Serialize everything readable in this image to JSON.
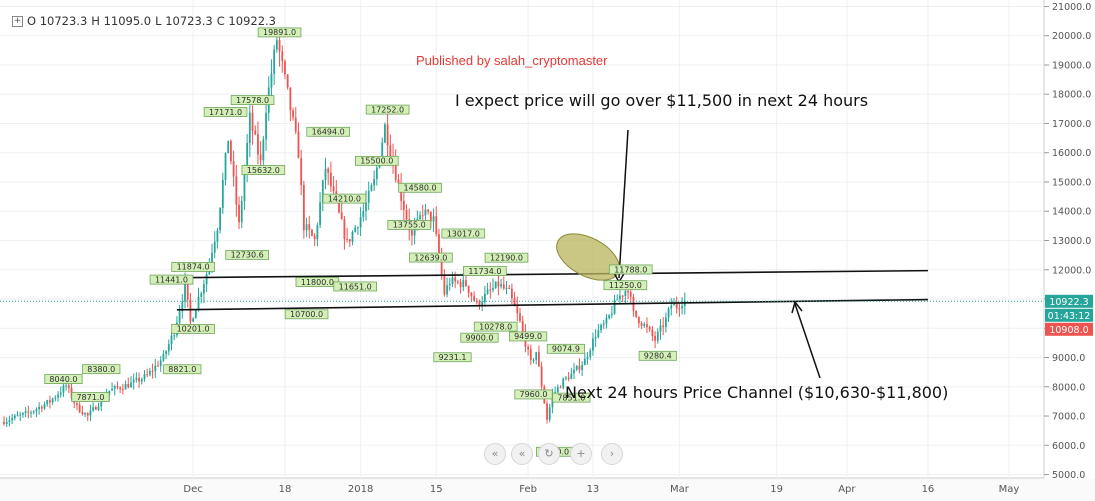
{
  "publisher": "Published by salah_cryptomaster",
  "ohlc": {
    "o": "O 10723.3",
    "h": "H 11095.0",
    "l": "L 10723.3",
    "c": "C 10922.3"
  },
  "annotations": {
    "top": "I expect price will go over $11,500 in next 24 hours",
    "bottom": "Next 24 hours Price Channel ($10,630-$11,800)"
  },
  "controls": {
    "back": "«",
    "reset": "↻",
    "zoom_in": "+",
    "forward": "›"
  },
  "colors": {
    "up": "#26a69a",
    "down": "#ef5350",
    "label_bg": "#d4f0b8",
    "label_border": "#6fa55a",
    "last_price": "#26a69a",
    "ellipse": "#b7b45a"
  },
  "chart_data": {
    "type": "candlestick",
    "symbol_interval": "1D",
    "y_ticks": [
      "21000.0",
      "20000.0",
      "19000.0",
      "18000.0",
      "17000.0",
      "16000.0",
      "15000.0",
      "14000.0",
      "13000.0",
      "12000.0",
      "11000.0",
      "10000.0",
      "9000.0",
      "8000.0",
      "7000.0",
      "6000.0",
      "5000.0"
    ],
    "x_ticks": [
      {
        "label": "Dec",
        "date": "2017-12-01"
      },
      {
        "label": "18",
        "date": "2017-12-18"
      },
      {
        "label": "2018",
        "date": "2018-01-01"
      },
      {
        "label": "15",
        "date": "2018-01-15"
      },
      {
        "label": "Feb",
        "date": "2018-02-01"
      },
      {
        "label": "13",
        "date": "2018-02-13"
      },
      {
        "label": "Mar",
        "date": "2018-03-01"
      },
      {
        "label": "19",
        "date": "2018-03-19"
      },
      {
        "label": "Apr",
        "date": "2018-04-01"
      },
      {
        "label": "16",
        "date": "2018-04-16"
      },
      {
        "label": "May",
        "date": "2018-05-01"
      }
    ],
    "ylim": [
      4950,
      21050
    ],
    "xlim": [
      "2017-10-27",
      "2018-05-06"
    ],
    "price_path": [
      [
        "2017-10-27",
        6800
      ],
      [
        "2017-11-01",
        7100
      ],
      [
        "2017-11-05",
        7500
      ],
      [
        "2017-11-08",
        8040
      ],
      [
        "2017-11-10",
        7300
      ],
      [
        "2017-11-12",
        7000
      ],
      [
        "2017-11-16",
        7871
      ],
      [
        "2017-11-20",
        8100
      ],
      [
        "2017-11-23",
        8380
      ],
      [
        "2017-11-26",
        9000
      ],
      [
        "2017-11-28",
        9900
      ],
      [
        "2017-11-30",
        11441
      ],
      [
        "2017-12-01",
        10201
      ],
      [
        "2017-12-04",
        11874
      ],
      [
        "2017-12-06",
        13500
      ],
      [
        "2017-12-08",
        16500
      ],
      [
        "2017-12-09",
        15000
      ],
      [
        "2017-12-10",
        13500
      ],
      [
        "2017-12-12",
        17171
      ],
      [
        "2017-12-14",
        15632
      ],
      [
        "2017-12-15",
        17578
      ],
      [
        "2017-12-17",
        19891
      ],
      [
        "2017-12-19",
        18000
      ],
      [
        "2017-12-21",
        16000
      ],
      [
        "2017-12-22",
        13500
      ],
      [
        "2017-12-24",
        13000
      ],
      [
        "2017-12-26",
        15500
      ],
      [
        "2017-12-28",
        14200
      ],
      [
        "2017-12-30",
        12900
      ],
      [
        "2018-01-02",
        14000
      ],
      [
        "2018-01-04",
        15000
      ],
      [
        "2018-01-06",
        16900
      ],
      [
        "2018-01-07",
        16100
      ],
      [
        "2018-01-09",
        14500
      ],
      [
        "2018-01-11",
        13100
      ],
      [
        "2018-01-13",
        14000
      ],
      [
        "2018-01-15",
        13700
      ],
      [
        "2018-01-17",
        11200
      ],
      [
        "2018-01-18",
        11600
      ],
      [
        "2018-01-21",
        11500
      ],
      [
        "2018-01-23",
        10800
      ],
      [
        "2018-01-25",
        11200
      ],
      [
        "2018-01-27",
        11500
      ],
      [
        "2018-01-29",
        11200
      ],
      [
        "2018-01-31",
        10200
      ],
      [
        "2018-02-02",
        8800
      ],
      [
        "2018-02-03",
        9200
      ],
      [
        "2018-02-05",
        6900
      ],
      [
        "2018-02-06",
        7700
      ],
      [
        "2018-02-08",
        8200
      ],
      [
        "2018-02-10",
        8500
      ],
      [
        "2018-02-12",
        8900
      ],
      [
        "2018-02-14",
        9800
      ],
      [
        "2018-02-16",
        10200
      ],
      [
        "2018-02-18",
        11000
      ],
      [
        "2018-02-20",
        11400
      ],
      [
        "2018-02-21",
        10500
      ],
      [
        "2018-02-23",
        10100
      ],
      [
        "2018-02-25",
        9600
      ],
      [
        "2018-02-27",
        10300
      ],
      [
        "2018-02-28",
        10800
      ],
      [
        "2018-03-01",
        10750
      ],
      [
        "2018-03-02",
        10922
      ]
    ],
    "labels": [
      {
        "date": "2017-11-07",
        "value": 8040,
        "text": "8040.0",
        "pos": "high"
      },
      {
        "date": "2017-11-14",
        "value": 8380,
        "text": "8380.0",
        "pos": "high"
      },
      {
        "date": "2017-11-12",
        "value": 7871,
        "text": "7871.0",
        "pos": "low"
      },
      {
        "date": "2017-11-27",
        "value": 11441,
        "text": "11441.0",
        "pos": "high"
      },
      {
        "date": "2017-11-29",
        "value": 8821,
        "text": "8821.0",
        "pos": "low"
      },
      {
        "date": "2017-12-01",
        "value": 11874,
        "text": "11874.0",
        "pos": "high"
      },
      {
        "date": "2017-12-01",
        "value": 10201,
        "text": "10201.0",
        "pos": "low"
      },
      {
        "date": "2017-12-07",
        "value": 17171,
        "text": "17171.0",
        "pos": "high"
      },
      {
        "date": "2017-12-11",
        "value": 12730.6,
        "text": "12730.6",
        "pos": "low"
      },
      {
        "date": "2017-12-12",
        "value": 17578,
        "text": "17578.0",
        "pos": "high"
      },
      {
        "date": "2017-12-14",
        "value": 15632,
        "text": "15632.0",
        "pos": "low"
      },
      {
        "date": "2017-12-17",
        "value": 19891,
        "text": "19891.0",
        "pos": "high"
      },
      {
        "date": "2017-12-22",
        "value": 10700,
        "text": "10700.0",
        "pos": "low"
      },
      {
        "date": "2017-12-24",
        "value": 11800,
        "text": "11800.0",
        "pos": "low"
      },
      {
        "date": "2017-12-26",
        "value": 16494,
        "text": "16494.0",
        "pos": "high"
      },
      {
        "date": "2017-12-31",
        "value": 11651,
        "text": "11651.0",
        "pos": "low"
      },
      {
        "date": "2017-12-29",
        "value": 14210,
        "text": "14210.0",
        "pos": "high"
      },
      {
        "date": "2018-01-04",
        "value": 15500,
        "text": "15500.0",
        "pos": "high"
      },
      {
        "date": "2018-01-06",
        "value": 17252,
        "text": "17252.0",
        "pos": "high"
      },
      {
        "date": "2018-01-10",
        "value": 13755,
        "text": "13755.0",
        "pos": "low"
      },
      {
        "date": "2018-01-12",
        "value": 14580,
        "text": "14580.0",
        "pos": "high"
      },
      {
        "date": "2018-01-14",
        "value": 12639,
        "text": "12639.0",
        "pos": "low"
      },
      {
        "date": "2018-01-18",
        "value": 9231.1,
        "text": "9231.1",
        "pos": "low"
      },
      {
        "date": "2018-01-20",
        "value": 13017,
        "text": "13017.0",
        "pos": "high"
      },
      {
        "date": "2018-01-23",
        "value": 9900,
        "text": "9900.0",
        "pos": "low"
      },
      {
        "date": "2018-01-24",
        "value": 11734,
        "text": "11734.0",
        "pos": "high"
      },
      {
        "date": "2018-01-26",
        "value": 10278,
        "text": "10278.0",
        "pos": "low"
      },
      {
        "date": "2018-01-28",
        "value": 12190,
        "text": "12190.0",
        "pos": "high"
      },
      {
        "date": "2018-02-01",
        "value": 9499,
        "text": "9499.0",
        "pos": "high"
      },
      {
        "date": "2018-02-02",
        "value": 7960,
        "text": "7960.0",
        "pos": "low"
      },
      {
        "date": "2018-02-06",
        "value": 6000,
        "text": "6000.0",
        "pos": "low"
      },
      {
        "date": "2018-02-08",
        "value": 9074.9,
        "text": "9074.9",
        "pos": "high"
      },
      {
        "date": "2018-02-09",
        "value": 7851,
        "text": "7851.0",
        "pos": "low"
      },
      {
        "date": "2018-02-19",
        "value": 11250,
        "text": "11250.0",
        "pos": "high"
      },
      {
        "date": "2018-02-20",
        "value": 11788,
        "text": "11788.0",
        "pos": "high"
      },
      {
        "date": "2018-02-25",
        "value": 9280.4,
        "text": "9280.4",
        "pos": "low"
      }
    ],
    "channel_lines": [
      {
        "from": [
          "2017-11-29",
          11730
        ],
        "to": [
          "2018-04-16",
          11970
        ]
      },
      {
        "from": [
          "2017-11-28",
          10630
        ],
        "to": [
          "2018-04-16",
          10980
        ]
      }
    ],
    "markers": {
      "last": {
        "value": 10922.3,
        "text": "10922.3"
      },
      "countdown": "01:43:12",
      "low": {
        "value": 10908,
        "text": "10908.0"
      }
    },
    "grid": true
  }
}
